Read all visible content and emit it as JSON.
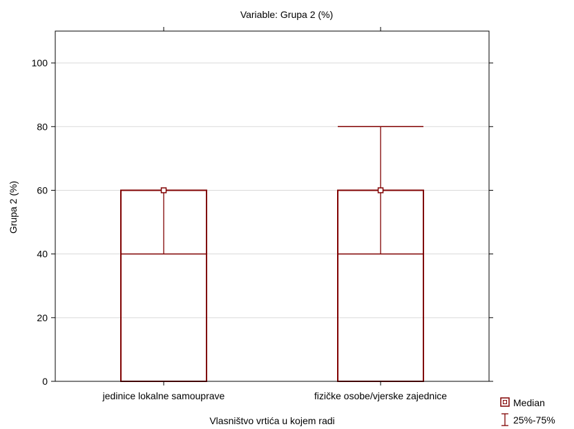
{
  "chart_data": {
    "type": "box",
    "title": "Variable: Grupa 2 (%)",
    "xlabel": "Vlasništvo vrtića u kojem radi",
    "ylabel": "Grupa 2 (%)",
    "ylim": [
      0,
      110
    ],
    "yticks": [
      0,
      20,
      40,
      60,
      80,
      100
    ],
    "grid": true,
    "categories": [
      "jedinice lokalne samouprave",
      "fizičke osobe/vjerske zajednice"
    ],
    "boxes": [
      {
        "category": "jedinice lokalne samouprave",
        "whisker_low": 0,
        "q1": 40,
        "median": 60,
        "q3": 60,
        "whisker_high": 60
      },
      {
        "category": "fizičke osobe/vjerske zajednice",
        "whisker_low": 0,
        "q1": 40,
        "median": 60,
        "q3": 60,
        "whisker_high": 80
      }
    ],
    "legend": {
      "position": "bottom-right",
      "items": [
        {
          "label": "Median",
          "marker": "square"
        },
        {
          "label": "25%-75%",
          "marker": "whisker"
        }
      ]
    },
    "colors": {
      "series": "#800000",
      "grid": "#d9d9d9",
      "frame": "#000000"
    }
  }
}
